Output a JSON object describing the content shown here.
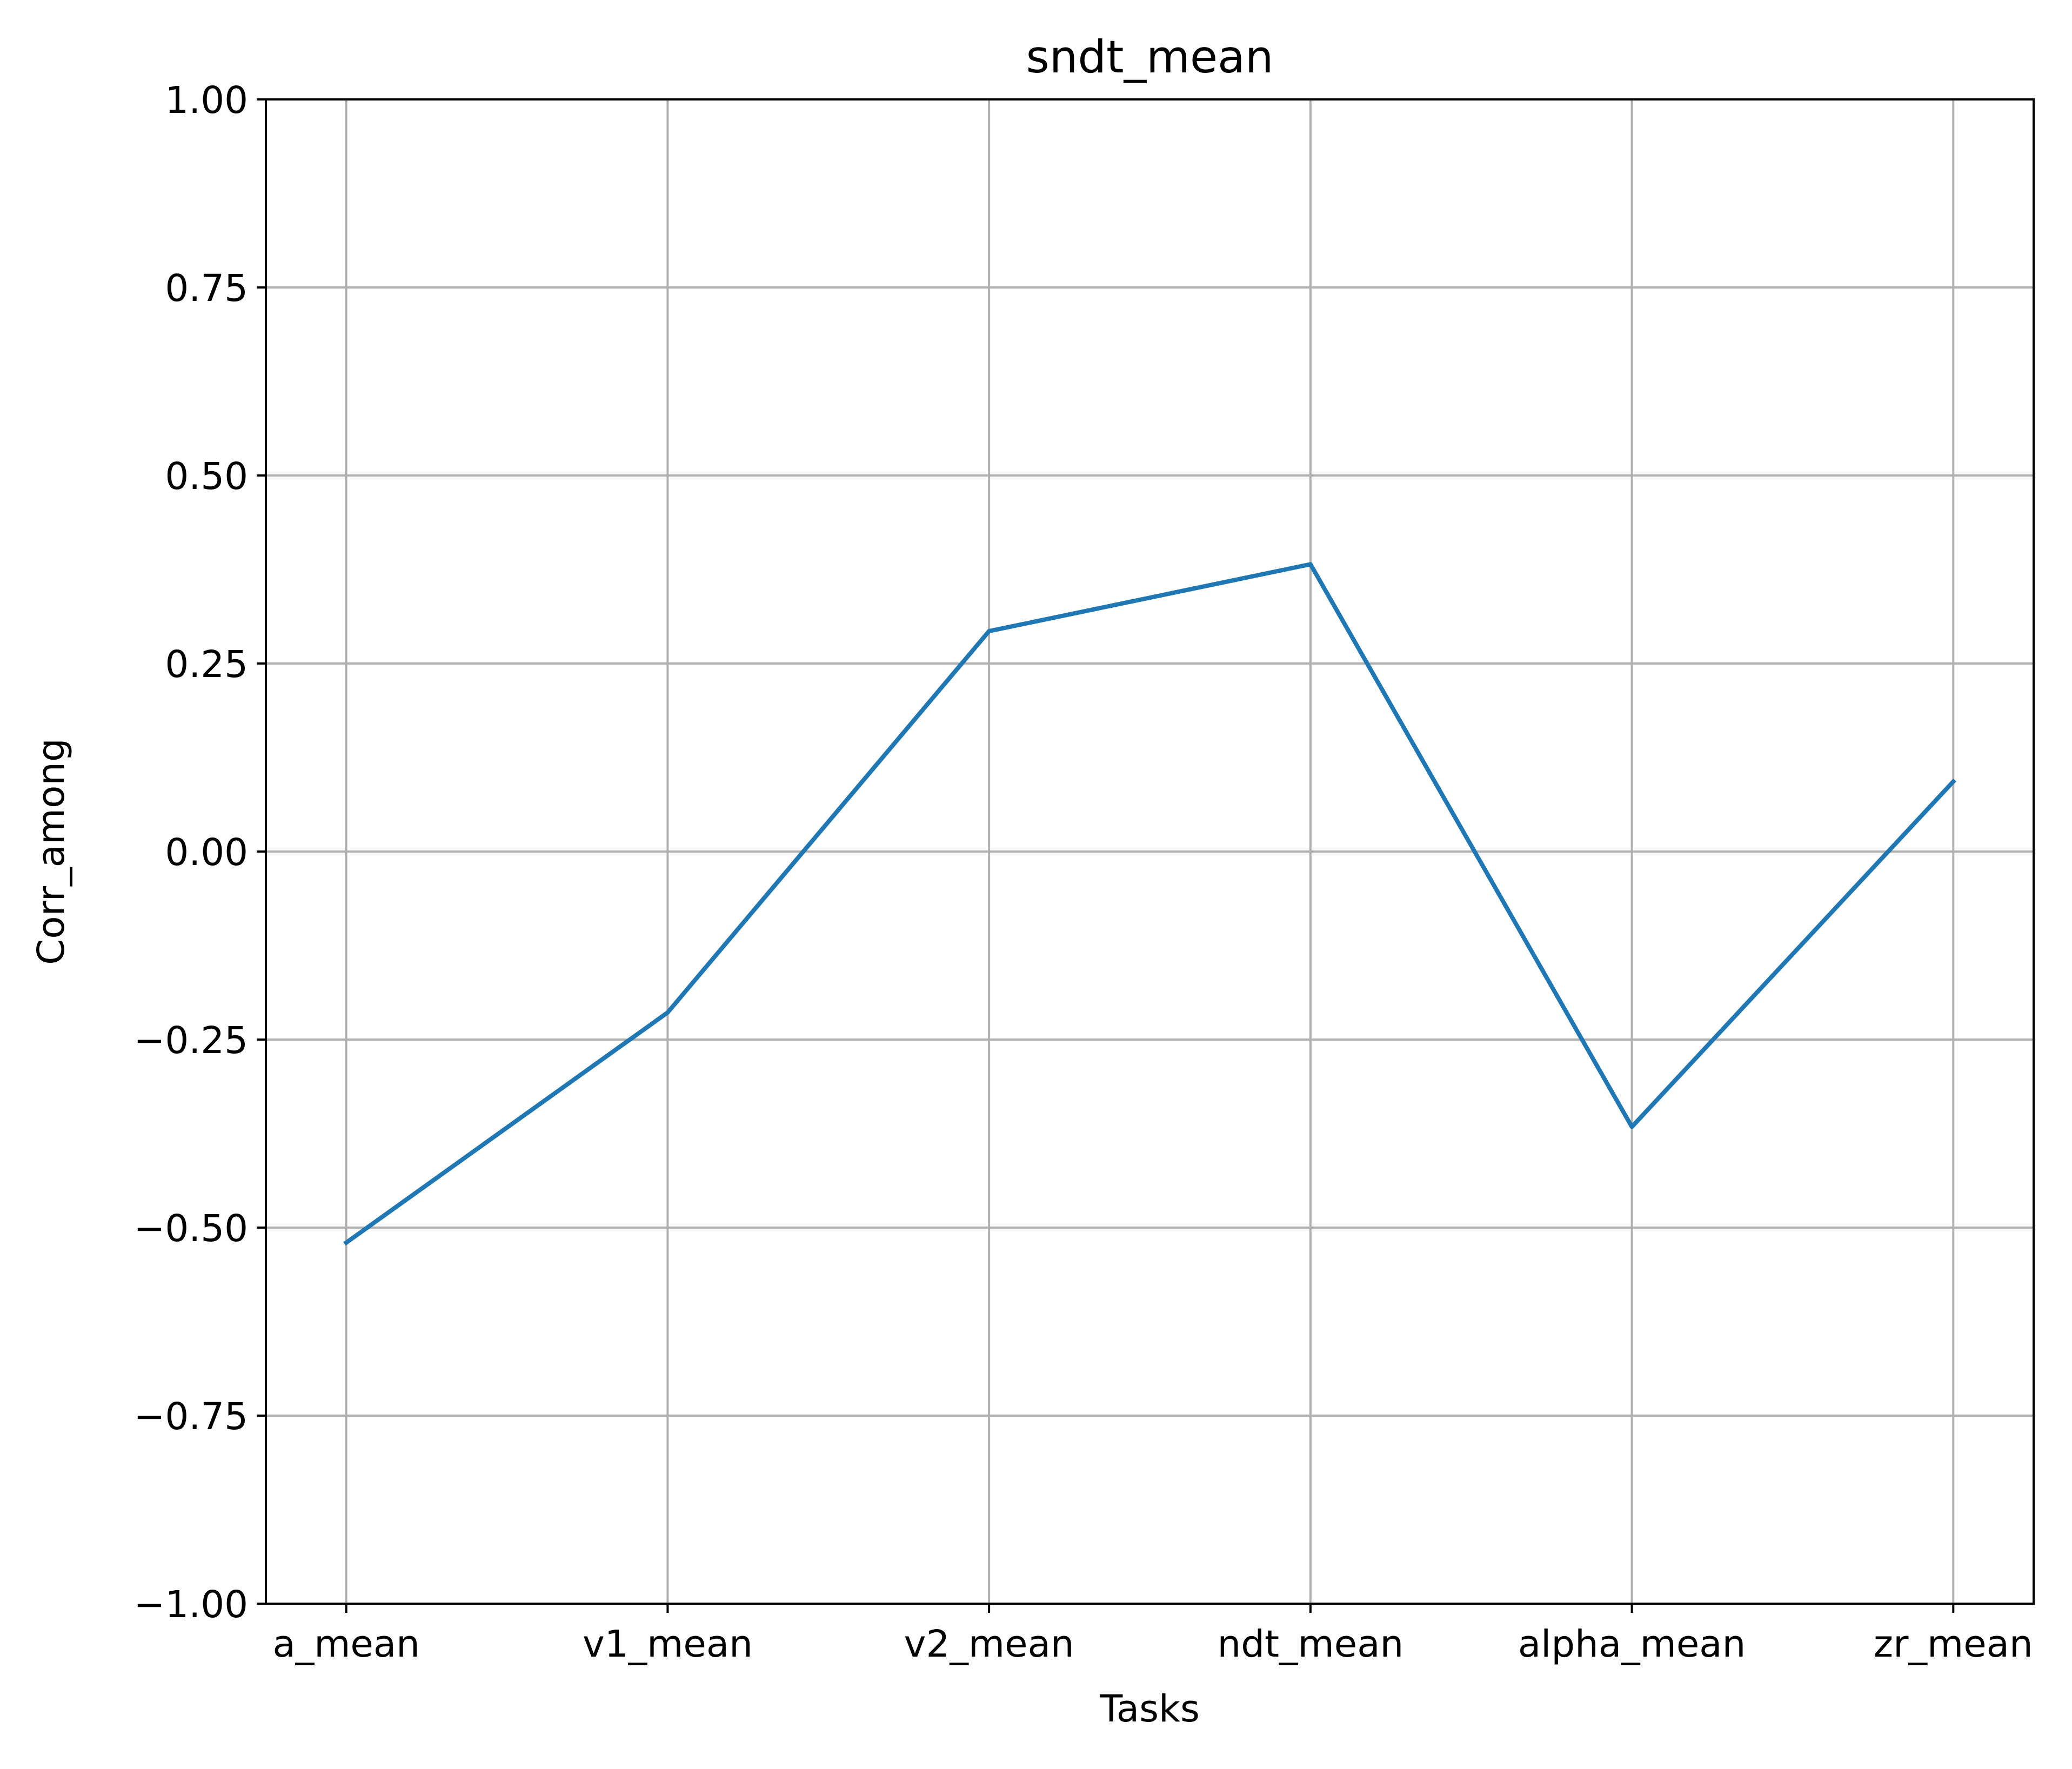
{
  "chart_data": {
    "type": "line",
    "title": "sndt_mean",
    "xlabel": "Tasks",
    "ylabel": "Corr_among",
    "categories": [
      "a_mean",
      "v1_mean",
      "v2_mean",
      "ndt_mean",
      "alpha_mean",
      "zr_mean"
    ],
    "series": [
      {
        "values": [
          -0.52,
          -0.214,
          0.293,
          0.382,
          -0.366,
          0.093
        ],
        "color": "#1f77b4"
      }
    ],
    "ylim": [
      -1.0,
      1.0
    ],
    "yticks": [
      -1.0,
      -0.75,
      -0.5,
      -0.25,
      0.0,
      0.25,
      0.5,
      0.75,
      1.0
    ],
    "ytick_labels": [
      "−1.00",
      "−0.75",
      "−0.50",
      "−0.25",
      "0.00",
      "0.25",
      "0.50",
      "0.75",
      "1.00"
    ],
    "grid": true,
    "grid_color": "#b0b0b0",
    "axis_color": "#000000"
  }
}
